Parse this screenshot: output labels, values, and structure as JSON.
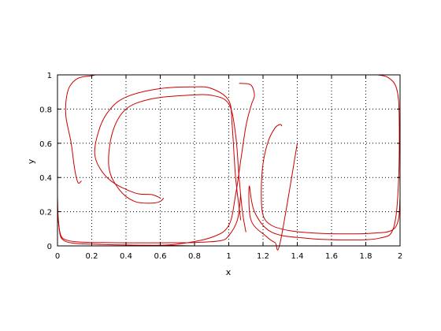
{
  "chart_data": {
    "type": "line",
    "title": "",
    "xlabel": "x",
    "ylabel": "y",
    "xlim": [
      0,
      2
    ],
    "ylim": [
      0,
      1
    ],
    "xticks": [
      0,
      0.2,
      0.4,
      0.6,
      0.8,
      1,
      1.2,
      1.4,
      1.6,
      1.8,
      2
    ],
    "yticks": [
      0,
      0.2,
      0.4,
      0.6,
      0.8,
      1
    ],
    "xtick_labels": [
      "0",
      "0.2",
      "0.4",
      "0.6",
      "0.8",
      "1",
      "1.2",
      "1.4",
      "1.6",
      "1.8",
      "2"
    ],
    "ytick_labels": [
      "0",
      "0.2",
      "0.4",
      "0.6",
      "0.8",
      "1"
    ],
    "grid": true,
    "grid_style": "dotted",
    "line_color": "#cc0000",
    "series": [
      {
        "x": [
          0.0,
          0.01,
          0.02,
          0.05,
          0.1,
          0.2,
          0.4,
          0.6,
          0.8,
          0.9,
          0.99,
          1.04,
          1.05
        ],
        "y": [
          0.2,
          0.1,
          0.05,
          0.025,
          0.015,
          0.01,
          0.005,
          0.003,
          0.0,
          0.0,
          0.0,
          0.0,
          0.0
        ]
      },
      {
        "x": [
          0.0,
          0.005,
          0.02,
          0.05,
          0.1,
          0.2,
          0.4,
          0.6,
          0.8,
          0.95,
          1.0,
          1.05,
          1.07
        ],
        "y": [
          0.29,
          0.15,
          0.06,
          0.035,
          0.025,
          0.02,
          0.018,
          0.018,
          0.02,
          0.03,
          0.06,
          0.15,
          0.3
        ]
      },
      {
        "x": [
          0.14,
          0.12,
          0.1,
          0.08,
          0.05,
          0.05,
          0.07,
          0.12,
          0.2,
          0.22
        ],
        "y": [
          0.38,
          0.37,
          0.45,
          0.6,
          0.75,
          0.85,
          0.93,
          0.98,
          0.995,
          1.0
        ]
      },
      {
        "x": [
          0.6,
          0.55,
          0.45,
          0.3,
          0.22,
          0.24,
          0.3,
          0.4,
          0.6,
          0.8,
          0.9,
          1.0,
          1.02,
          1.04,
          1.07
        ],
        "y": [
          0.28,
          0.3,
          0.31,
          0.39,
          0.52,
          0.67,
          0.79,
          0.87,
          0.92,
          0.93,
          0.92,
          0.85,
          0.7,
          0.4,
          0.15
        ]
      },
      {
        "x": [
          0.62,
          0.6,
          0.55,
          0.45,
          0.36,
          0.3,
          0.32,
          0.4,
          0.55,
          0.75,
          0.9,
          1.0,
          1.04,
          1.06,
          1.08,
          1.1
        ],
        "y": [
          0.28,
          0.26,
          0.25,
          0.26,
          0.33,
          0.46,
          0.66,
          0.8,
          0.86,
          0.88,
          0.88,
          0.83,
          0.65,
          0.4,
          0.2,
          0.08
        ]
      },
      {
        "x": [
          0.52,
          0.7,
          0.9,
          1.0,
          1.04,
          1.07,
          1.1,
          1.13,
          1.15,
          1.13,
          1.08,
          1.06
        ],
        "y": [
          0.0,
          0.01,
          0.05,
          0.12,
          0.3,
          0.5,
          0.7,
          0.82,
          0.88,
          0.94,
          0.95,
          0.95
        ]
      },
      {
        "x": [
          1.31,
          1.3,
          1.27,
          1.23,
          1.2,
          1.19,
          1.2,
          1.25,
          1.35,
          1.5,
          1.7,
          1.85,
          1.95,
          1.99,
          2.0
        ],
        "y": [
          0.7,
          0.71,
          0.69,
          0.61,
          0.48,
          0.32,
          0.18,
          0.12,
          0.09,
          0.075,
          0.07,
          0.075,
          0.09,
          0.15,
          0.28
        ]
      },
      {
        "x": [
          1.4,
          1.3,
          1.27,
          1.22,
          1.13,
          1.12,
          1.15,
          1.25,
          1.45,
          1.7,
          1.88,
          1.96,
          1.99,
          1.995,
          1.98,
          1.93,
          1.87
        ],
        "y": [
          0.6,
          0.02,
          0.02,
          0.055,
          0.15,
          0.35,
          0.2,
          0.08,
          0.045,
          0.035,
          0.045,
          0.1,
          0.35,
          0.75,
          0.92,
          0.985,
          1.0
        ]
      }
    ]
  }
}
